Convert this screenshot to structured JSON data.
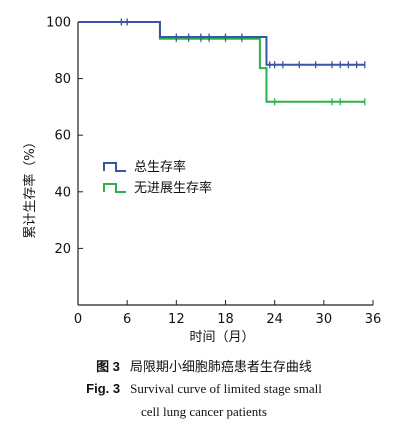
{
  "chart_data": {
    "type": "line",
    "step": true,
    "xlabel": "时间（月）",
    "ylabel": "累计生存率（%）",
    "xlim": [
      0,
      36
    ],
    "ylim": [
      0,
      100
    ],
    "xticks": [
      0,
      6,
      12,
      18,
      24,
      30,
      36
    ],
    "yticks": [
      20,
      40,
      60,
      80,
      100
    ],
    "y_zero_label": "0",
    "legend_position": "left-middle",
    "series": [
      {
        "name": "总生存率",
        "color": "#3a55a4",
        "x": [
          0,
          10,
          23,
          35
        ],
        "y": [
          100,
          94.7,
          84.9,
          84.9
        ],
        "censor_x": [
          5.3,
          6,
          12,
          13.5,
          15,
          16,
          18,
          20,
          23.4,
          24,
          25,
          27,
          29,
          31,
          32,
          33,
          34,
          35
        ],
        "censor_y": [
          100,
          100,
          94.7,
          94.7,
          94.7,
          94.7,
          94.7,
          94.7,
          84.9,
          84.9,
          84.9,
          84.9,
          84.9,
          84.9,
          84.9,
          84.9,
          84.9,
          84.9
        ]
      },
      {
        "name": "无进展生存率",
        "color": "#2bb24c",
        "x": [
          0,
          10,
          22.2,
          23,
          35
        ],
        "y": [
          100,
          94.1,
          83.7,
          71.8,
          71.8
        ],
        "censor_x": [
          5.3,
          6,
          12,
          13.5,
          15,
          16,
          18,
          20,
          24,
          31,
          32,
          35
        ],
        "censor_y": [
          100,
          100,
          94.1,
          94.1,
          94.1,
          94.1,
          94.1,
          94.1,
          71.8,
          71.8,
          71.8,
          71.8
        ]
      }
    ]
  },
  "caption": {
    "zh_label": "图 3",
    "zh_text": "局限期小细胞肺癌患者生存曲线",
    "en_label": "Fig. 3",
    "en_line1": "Survival curve of limited stage small",
    "en_line2": "cell lung cancer patients"
  }
}
